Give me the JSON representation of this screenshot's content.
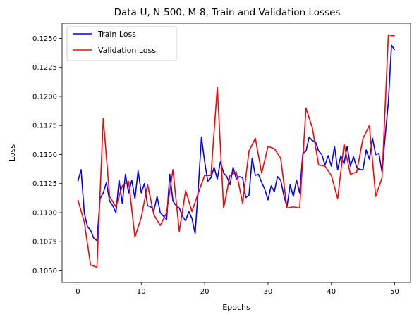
{
  "chart_data": {
    "type": "line",
    "title": "Data-U, N-500, M-8, Train and Validation Losses",
    "xlabel": "Epochs",
    "ylabel": "Loss",
    "xlim": [
      -2.5,
      52.5
    ],
    "ylim": [
      0.104,
      0.1263
    ],
    "xticks": [
      0,
      10,
      20,
      30,
      40,
      50
    ],
    "yticks": [
      0.105,
      0.1075,
      0.11,
      0.1125,
      0.115,
      0.1175,
      0.12,
      0.1225,
      0.125
    ],
    "legend_position": "top-left",
    "grid": false,
    "series": [
      {
        "name": "Train Loss",
        "color": "#0000ff",
        "x": [
          0,
          0.5,
          1,
          1.5,
          2,
          2.5,
          3,
          3.5,
          4,
          4.5,
          5,
          5.5,
          6,
          6.5,
          7,
          7.5,
          8,
          8.5,
          9,
          9.5,
          10,
          10.5,
          11,
          11.5,
          12,
          12.5,
          13,
          13.5,
          14,
          14.5,
          15,
          15.5,
          16,
          16.5,
          17,
          17.5,
          18,
          18.5,
          19,
          19.5,
          20,
          20.5,
          21,
          21.5,
          22,
          22.5,
          23,
          23.5,
          24,
          24.5,
          25,
          25.5,
          26,
          26.5,
          27,
          27.5,
          28,
          28.5,
          29,
          29.5,
          30,
          30.5,
          31,
          31.5,
          32,
          32.5,
          33,
          33.5,
          34,
          34.5,
          35,
          35.5,
          36,
          36.5,
          37,
          37.5,
          38,
          38.5,
          39,
          39.5,
          40,
          40.5,
          41,
          41.5,
          42,
          42.5,
          43,
          43.5,
          44,
          44.5,
          45,
          45.5,
          46,
          46.5,
          47,
          47.5,
          48,
          48.5,
          49,
          49.5,
          50
        ],
        "values": [
          0.1127,
          0.1137,
          0.11,
          0.1088,
          0.1085,
          0.1078,
          0.1076,
          0.1112,
          0.1117,
          0.1126,
          0.111,
          0.1106,
          0.11,
          0.1128,
          0.1108,
          0.1133,
          0.1117,
          0.1128,
          0.1112,
          0.1136,
          0.1117,
          0.1125,
          0.1106,
          0.1105,
          0.1102,
          0.1114,
          0.11,
          0.1097,
          0.1094,
          0.1133,
          0.111,
          0.1106,
          0.1104,
          0.1097,
          0.1093,
          0.1101,
          0.1095,
          0.1082,
          0.1121,
          0.1165,
          0.1144,
          0.1127,
          0.113,
          0.1139,
          0.1129,
          0.1144,
          0.1134,
          0.1131,
          0.1124,
          0.1139,
          0.1129,
          0.1131,
          0.113,
          0.1113,
          0.1115,
          0.1147,
          0.1132,
          0.1133,
          0.1126,
          0.112,
          0.1111,
          0.1123,
          0.1118,
          0.1131,
          0.1128,
          0.1115,
          0.1105,
          0.1124,
          0.1114,
          0.1128,
          0.1117,
          0.1151,
          0.1153,
          0.1165,
          0.1162,
          0.1161,
          0.1153,
          0.115,
          0.1141,
          0.1149,
          0.114,
          0.1157,
          0.1137,
          0.1149,
          0.1142,
          0.1157,
          0.114,
          0.1148,
          0.1139,
          0.1137,
          0.1137,
          0.1154,
          0.1146,
          0.1164,
          0.115,
          0.1151,
          0.1135,
          0.1166,
          0.1195,
          0.1244,
          0.124
        ]
      },
      {
        "name": "Validation Loss",
        "color": "#ff0000",
        "x": [
          0,
          1,
          2,
          3,
          4,
          5,
          6,
          7,
          8,
          9,
          10,
          11,
          12,
          13,
          14,
          15,
          16,
          17,
          18,
          19,
          20,
          21,
          22,
          23,
          24,
          25,
          26,
          27,
          28,
          29,
          30,
          31,
          32,
          33,
          34,
          35,
          36,
          37,
          38,
          39,
          40,
          41,
          42,
          43,
          44,
          45,
          46,
          47,
          48,
          49,
          50
        ],
        "values": [
          0.1111,
          0.1092,
          0.1055,
          0.1053,
          0.1181,
          0.1114,
          0.1105,
          0.1123,
          0.1127,
          0.1079,
          0.1096,
          0.1124,
          0.1098,
          0.1089,
          0.11,
          0.1137,
          0.1084,
          0.1119,
          0.1101,
          0.1117,
          0.1132,
          0.1132,
          0.1208,
          0.1104,
          0.1132,
          0.1135,
          0.1108,
          0.1153,
          0.1164,
          0.1134,
          0.1157,
          0.1155,
          0.1147,
          0.1104,
          0.1105,
          0.1104,
          0.119,
          0.1173,
          0.1141,
          0.114,
          0.1132,
          0.1112,
          0.1159,
          0.1133,
          0.1135,
          0.1164,
          0.1175,
          0.1114,
          0.113,
          0.1253,
          0.1252
        ]
      }
    ]
  }
}
